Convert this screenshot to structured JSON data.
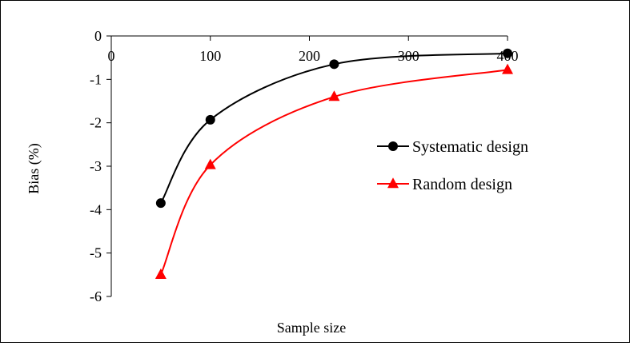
{
  "chart_data": {
    "type": "line",
    "smooth": true,
    "title": "",
    "xlabel": "Sample size",
    "ylabel": "Bias (%)",
    "xlim": [
      0,
      400
    ],
    "ylim": [
      -6,
      0
    ],
    "x_axis_position": "top (at y = 0)",
    "x_ticks": [
      0,
      100,
      200,
      300,
      400
    ],
    "y_ticks": [
      0,
      -1,
      -2,
      -3,
      -4,
      -5,
      -6
    ],
    "x_tick_labels": [
      "0",
      "100",
      "200",
      "300",
      "400"
    ],
    "y_tick_labels": [
      "0",
      "-1",
      "-2",
      "-3",
      "-4",
      "-5",
      "-6"
    ],
    "grid": false,
    "legend_position": "right",
    "series": [
      {
        "name": "Systematic design",
        "color": "#000000",
        "marker": "circle",
        "x": [
          50,
          100,
          225,
          400
        ],
        "y": [
          -3.85,
          -1.93,
          -0.65,
          -0.4
        ]
      },
      {
        "name": "Random design",
        "color": "#ff0000",
        "marker": "triangle",
        "x": [
          50,
          100,
          225,
          400
        ],
        "y": [
          -5.5,
          -2.97,
          -1.4,
          -0.78
        ]
      }
    ]
  }
}
